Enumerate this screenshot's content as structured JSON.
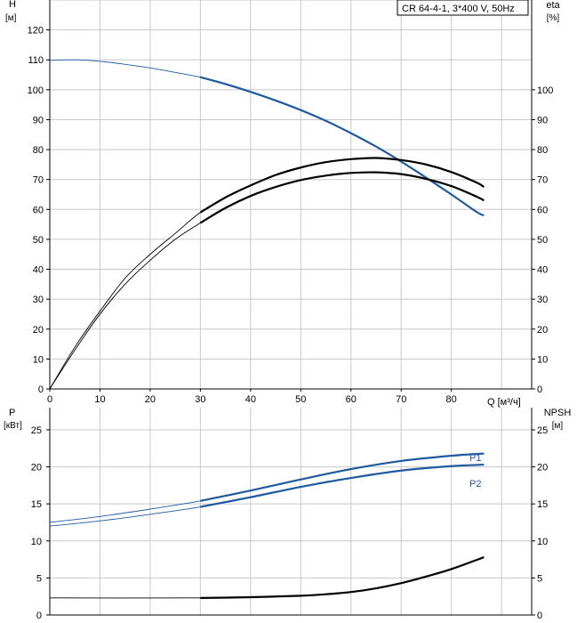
{
  "header": {
    "pump_label": "CR 64-4-1, 3*400 V, 50Hz"
  },
  "top": {
    "left_axis": {
      "title": "H",
      "unit": "[м]",
      "ticks": [
        "0",
        "10",
        "20",
        "30",
        "40",
        "50",
        "60",
        "70",
        "80",
        "90",
        "100",
        "110",
        "120"
      ]
    },
    "right_axis": {
      "title": "eta",
      "unit": "[%]",
      "ticks": [
        "0",
        "10",
        "20",
        "30",
        "40",
        "50",
        "60",
        "70",
        "80",
        "90",
        "100"
      ]
    },
    "x_axis": {
      "ticks": [
        "0",
        "10",
        "20",
        "30",
        "40",
        "50",
        "60",
        "70",
        "80"
      ],
      "label": "Q [м³/ч]"
    }
  },
  "bottom": {
    "left_axis": {
      "title": "P",
      "unit": "[кВт]",
      "ticks": [
        "0",
        "5",
        "10",
        "15",
        "20",
        "25"
      ]
    },
    "right_axis": {
      "title": "NPSH",
      "unit": "[м]",
      "ticks": [
        "0",
        "5",
        "10",
        "15",
        "20",
        "25"
      ]
    },
    "series_labels": {
      "p1": "P1",
      "p2": "P2"
    }
  },
  "colors": {
    "blue": "#1f5aa0",
    "black": "#000000",
    "grid": "#c8c8c8"
  },
  "chart_data": [
    {
      "type": "line",
      "xlabel": "Q [м³/ч]",
      "ylabel": "H [м]",
      "y2label": "eta [%]",
      "xlim": [
        0,
        96
      ],
      "ylim": [
        0,
        130
      ],
      "y2lim": [
        0,
        130
      ],
      "operating_range_start_q": 30,
      "series": [
        {
          "axis": "left",
          "color": "#1f5aa0",
          "x": [
            0,
            5,
            10,
            15,
            20,
            25,
            30,
            35,
            40,
            45,
            50,
            55,
            60,
            65,
            70,
            75,
            80,
            85,
            86.5
          ],
          "y": [
            109.8,
            110.0,
            109.5,
            108.5,
            107.3,
            105.8,
            104.2,
            101.9,
            99.3,
            96.4,
            93.2,
            89.6,
            85.5,
            81.0,
            76.0,
            70.6,
            65.0,
            59.2,
            58.0
          ]
        },
        {
          "axis": "right",
          "color": "#000000",
          "x": [
            0,
            5,
            10,
            15,
            20,
            25,
            30,
            35,
            40,
            45,
            50,
            55,
            60,
            65,
            70,
            75,
            80,
            85,
            86.5
          ],
          "y": [
            0,
            14,
            26,
            37,
            45,
            52,
            59,
            64,
            68,
            71.5,
            74,
            75.8,
            76.8,
            77.2,
            76.5,
            75,
            72.5,
            69,
            67.5
          ]
        },
        {
          "axis": "right",
          "color": "#000000",
          "x": [
            0,
            5,
            10,
            15,
            20,
            25,
            30,
            35,
            40,
            45,
            50,
            55,
            60,
            65,
            70,
            75,
            80,
            85,
            86.5
          ],
          "y": [
            0,
            13,
            25,
            35,
            43,
            50,
            55.5,
            60.5,
            64.5,
            67.5,
            69.8,
            71.3,
            72.2,
            72.4,
            71.8,
            70.2,
            67.8,
            64.3,
            63
          ]
        }
      ]
    },
    {
      "type": "line",
      "xlabel": "Q [м³/ч]",
      "ylabel": "P [кВт]",
      "y2label": "NPSH [м]",
      "xlim": [
        0,
        96
      ],
      "ylim": [
        0,
        28
      ],
      "y2lim": [
        0,
        28
      ],
      "operating_range_start_q": 30,
      "series": [
        {
          "name": "P1",
          "axis": "left",
          "color": "#1f5aa0",
          "x": [
            0,
            10,
            20,
            30,
            40,
            50,
            60,
            70,
            80,
            86.5
          ],
          "y": [
            12.5,
            13.3,
            14.3,
            15.4,
            16.8,
            18.3,
            19.7,
            20.8,
            21.5,
            21.8
          ]
        },
        {
          "name": "P2",
          "axis": "left",
          "color": "#1f5aa0",
          "x": [
            0,
            10,
            20,
            30,
            40,
            50,
            60,
            70,
            80,
            86.5
          ],
          "y": [
            12.0,
            12.7,
            13.6,
            14.6,
            15.9,
            17.3,
            18.5,
            19.5,
            20.1,
            20.3
          ]
        },
        {
          "name": "NPSH",
          "axis": "right",
          "color": "#000000",
          "x": [
            0,
            30,
            40,
            50,
            55,
            60,
            65,
            70,
            75,
            80,
            86.5
          ],
          "y": [
            2.3,
            2.3,
            2.4,
            2.6,
            2.8,
            3.1,
            3.6,
            4.3,
            5.2,
            6.2,
            7.8
          ]
        }
      ]
    }
  ]
}
